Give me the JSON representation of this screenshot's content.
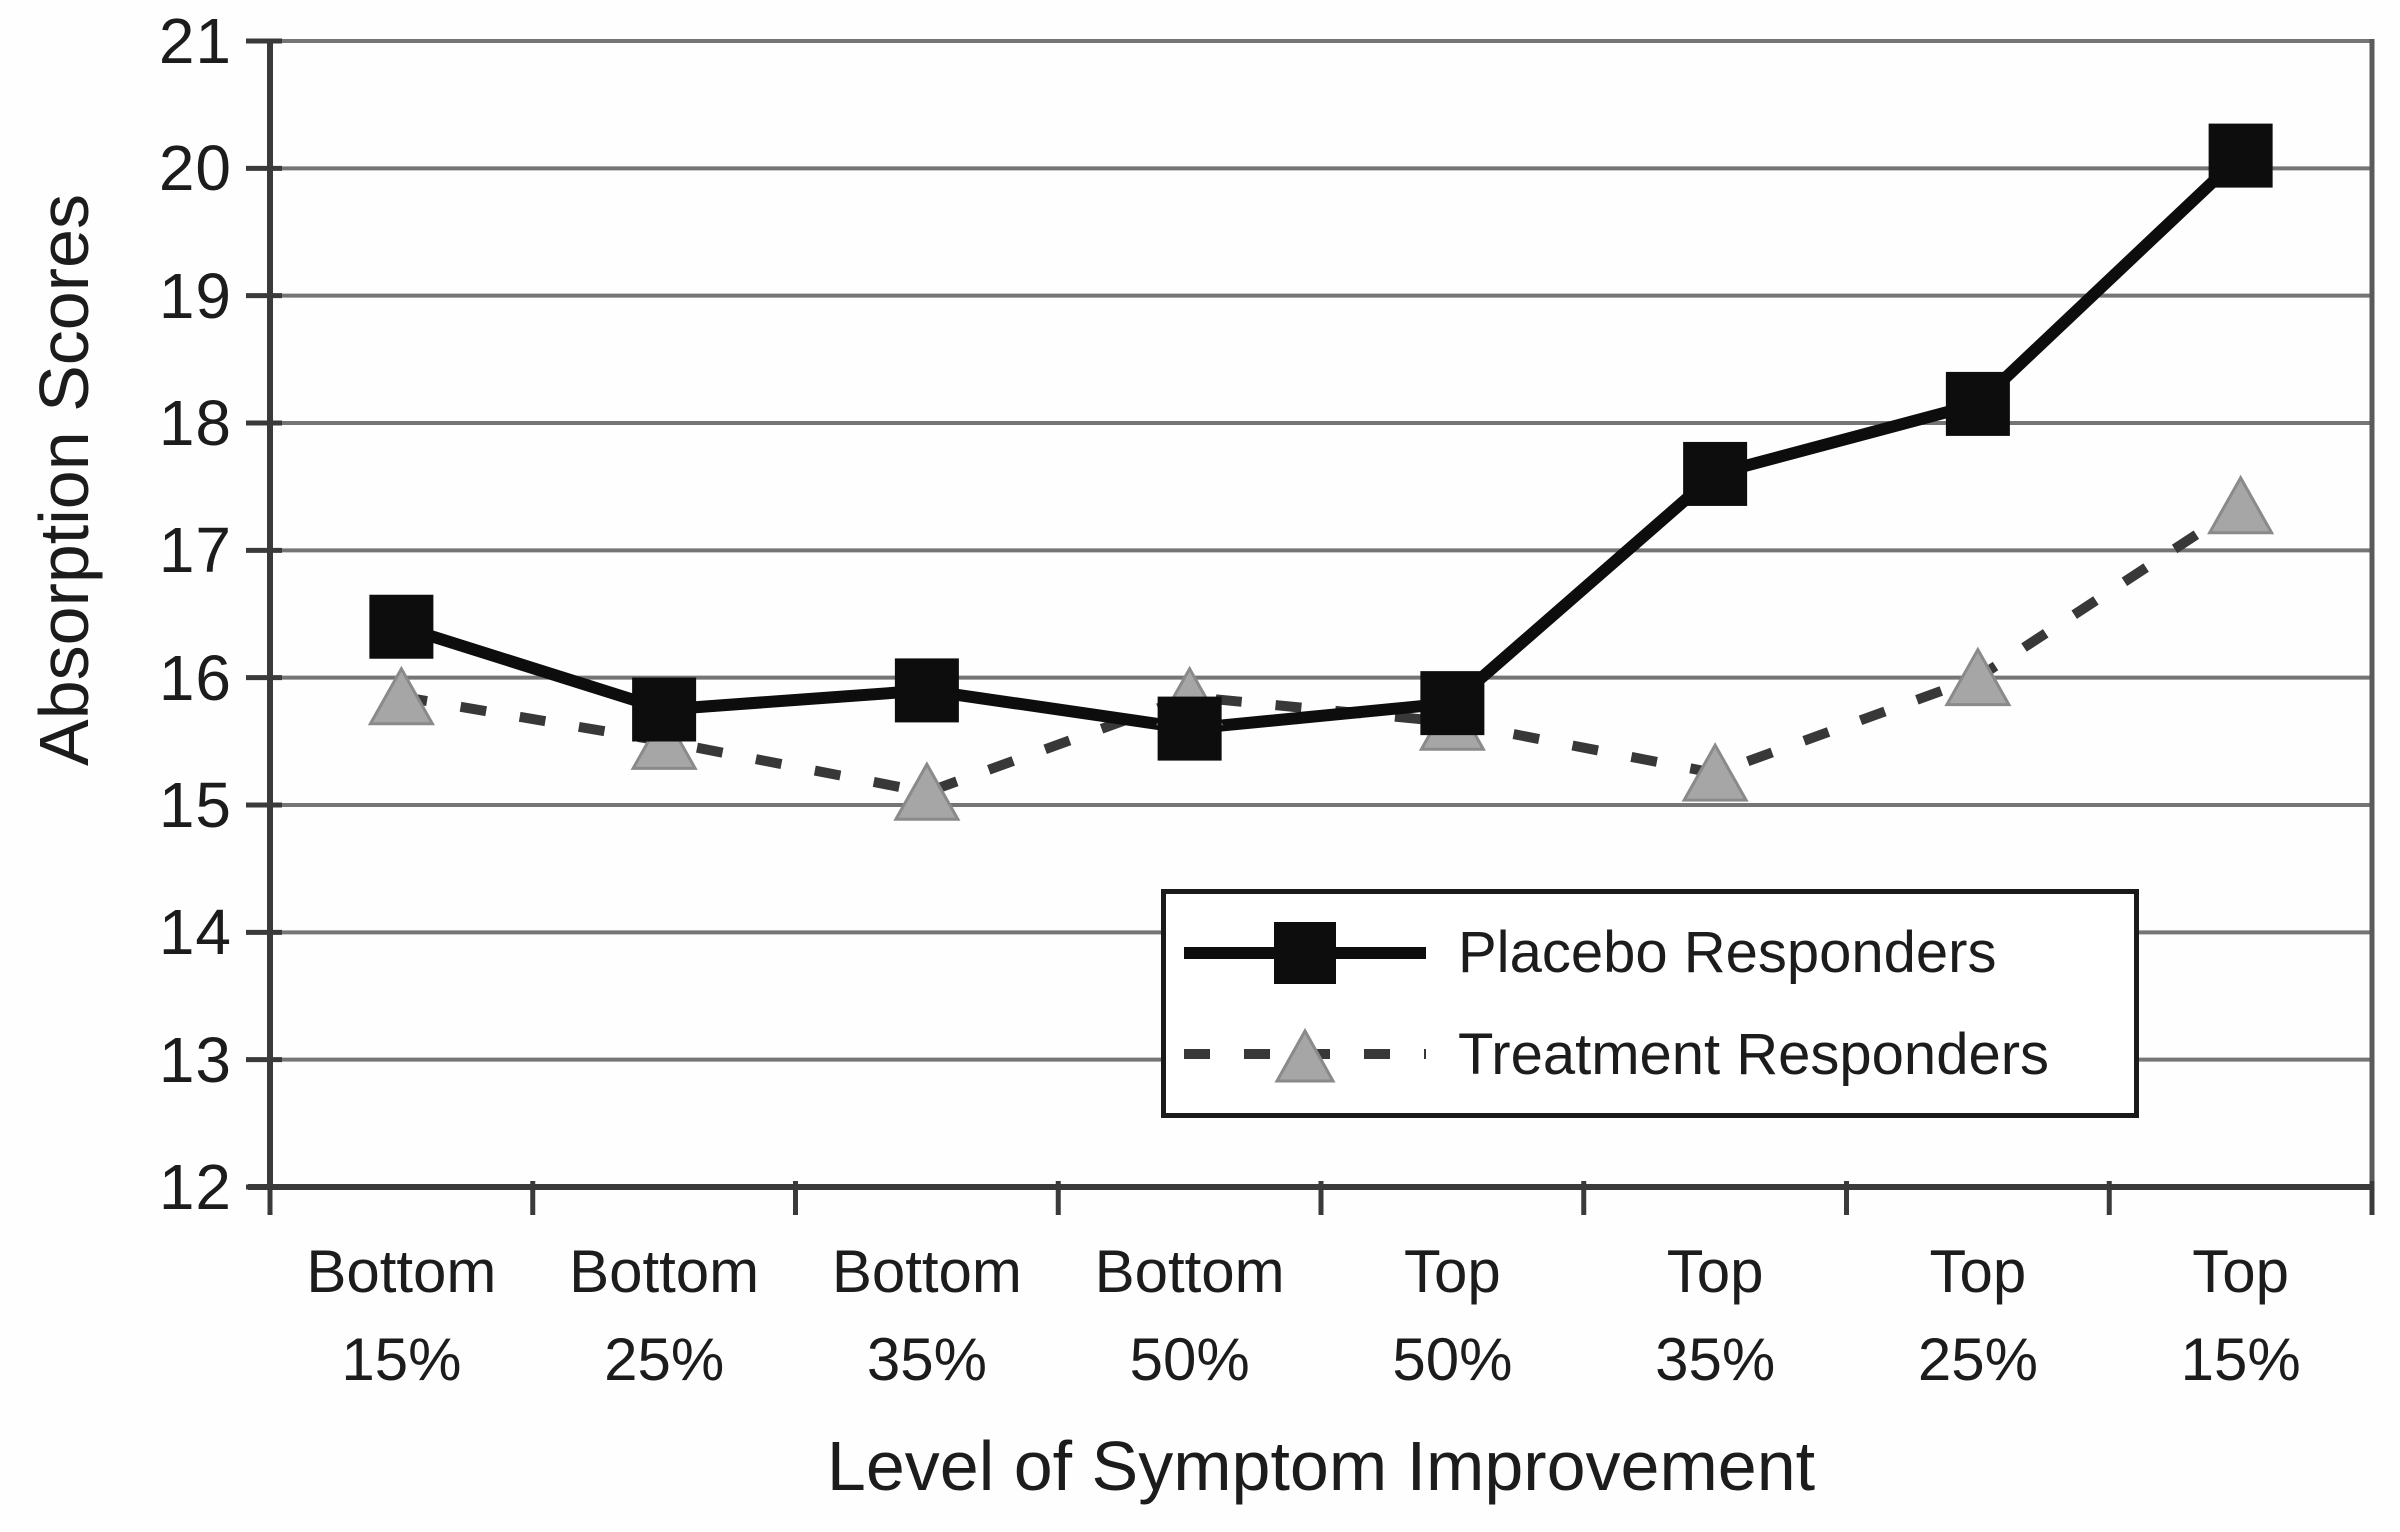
{
  "chart_data": {
    "type": "line",
    "title": "",
    "xlabel": "Level of Symptom Improvement",
    "ylabel": "Absorption Scores",
    "categories": [
      "Bottom 15%",
      "Bottom 25%",
      "Bottom 35%",
      "Bottom 50%",
      "Top 50%",
      "Top 35%",
      "Top 25%",
      "Top 15%"
    ],
    "series": [
      {
        "name": "Placebo Responders",
        "marker": "square",
        "line_style": "solid",
        "line_color": "#0d0d0d",
        "marker_color": "#0d0d0d",
        "values": [
          16.4,
          15.75,
          15.9,
          15.6,
          15.8,
          17.6,
          18.15,
          20.1
        ]
      },
      {
        "name": "Treatment Responders",
        "marker": "triangle",
        "line_style": "dashed",
        "line_color": "#383838",
        "marker_color": "#a6a6a6",
        "marker_edge_color": "#8a8a8a",
        "values": [
          15.85,
          15.5,
          15.1,
          15.85,
          15.65,
          15.25,
          16.0,
          17.35
        ]
      }
    ],
    "ylim": [
      12,
      21
    ],
    "yticks": [
      12,
      13,
      14,
      15,
      16,
      17,
      18,
      19,
      20,
      21
    ],
    "grid": true,
    "gridline_color": "#757575",
    "axis_color": "#3a3a3a",
    "text_color": "#1c1c1c",
    "legend_position": "inside-lower-right",
    "background_color": "#fefefe"
  }
}
